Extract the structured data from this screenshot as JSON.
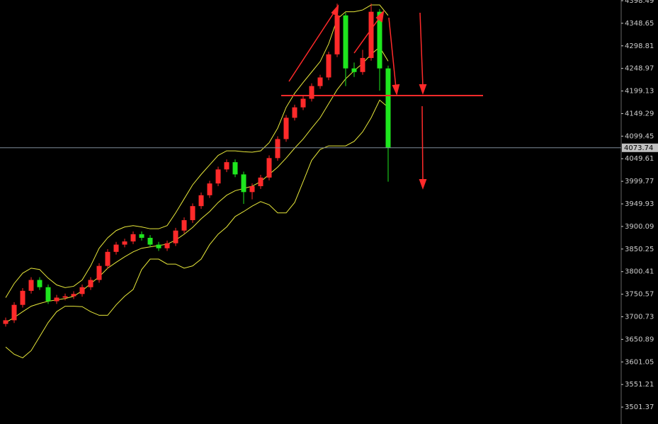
{
  "chart_data": {
    "type": "candlestick",
    "up_color": "#ff2a2a",
    "down_color": "#1ee61e",
    "band_color": "#e8e83a",
    "axis_color": "#cccccc",
    "open": [
      3685,
      3693,
      3727,
      3758,
      3782,
      3766,
      3735,
      3743,
      3746,
      3751,
      3766,
      3782,
      3813,
      3844,
      3860,
      3867,
      3883,
      3875,
      3860,
      3852,
      3863,
      3891,
      3914,
      3945,
      3969,
      3995,
      4026,
      4042,
      4015,
      3976,
      3989,
      4008,
      4051,
      4093,
      4140,
      4163,
      4182,
      4210,
      4229,
      4280,
      4366,
      4249,
      4241,
      4272,
      4374,
      4249
    ],
    "high": [
      3699,
      3733,
      3764,
      3788,
      3788,
      3772,
      3749,
      3752,
      3757,
      3772,
      3788,
      3819,
      3850,
      3866,
      3873,
      3889,
      3889,
      3881,
      3866,
      3869,
      3897,
      3920,
      3951,
      3975,
      4001,
      4032,
      4048,
      4048,
      4021,
      3995,
      4014,
      4057,
      4099,
      4146,
      4169,
      4188,
      4216,
      4235,
      4286,
      4392,
      4372,
      4262,
      4290,
      4392,
      4380,
      4255
    ],
    "low": [
      3679,
      3687,
      3721,
      3752,
      3760,
      3729,
      3729,
      3737,
      3740,
      3745,
      3760,
      3776,
      3807,
      3838,
      3854,
      3861,
      3869,
      3854,
      3846,
      3846,
      3857,
      3885,
      3908,
      3939,
      3963,
      3989,
      4020,
      4009,
      3950,
      3960,
      3983,
      4002,
      4045,
      4087,
      4134,
      4157,
      4176,
      4204,
      4223,
      4274,
      4210,
      4230,
      4235,
      4266,
      4200,
      3999
    ],
    "close": [
      3693,
      3727,
      3758,
      3782,
      3766,
      3735,
      3743,
      3746,
      3751,
      3766,
      3782,
      3813,
      3844,
      3860,
      3867,
      3883,
      3875,
      3860,
      3852,
      3863,
      3891,
      3914,
      3945,
      3969,
      3995,
      4026,
      4042,
      4015,
      3976,
      3989,
      4008,
      4051,
      4093,
      4140,
      4163,
      4182,
      4210,
      4229,
      4280,
      4366,
      4249,
      4241,
      4272,
      4374,
      4249,
      4073.74
    ],
    "bands": {
      "upper": [
        3743,
        3774,
        3797,
        3808,
        3805,
        3786,
        3771,
        3765,
        3768,
        3782,
        3813,
        3852,
        3875,
        3891,
        3899,
        3902,
        3899,
        3895,
        3895,
        3902,
        3930,
        3961,
        3992,
        4015,
        4036,
        4057,
        4067,
        4067,
        4065,
        4064,
        4067,
        4085,
        4117,
        4163,
        4194,
        4218,
        4241,
        4264,
        4303,
        4358,
        4374,
        4374,
        4378,
        4389,
        4389,
        4366
      ],
      "middle": [
        3688,
        3699,
        3712,
        3724,
        3730,
        3735,
        3738,
        3741,
        3746,
        3758,
        3774,
        3789,
        3808,
        3821,
        3833,
        3844,
        3852,
        3855,
        3858,
        3861,
        3870,
        3883,
        3898,
        3917,
        3933,
        3953,
        3969,
        3979,
        3984,
        3989,
        3999,
        4015,
        4031,
        4051,
        4073,
        4093,
        4117,
        4140,
        4171,
        4202,
        4226,
        4244,
        4260,
        4280,
        4296,
        4265
      ],
      "lower": [
        3634,
        3618,
        3610,
        3626,
        3657,
        3688,
        3712,
        3724,
        3724,
        3723,
        3712,
        3704,
        3704,
        3727,
        3746,
        3761,
        3805,
        3828,
        3828,
        3817,
        3817,
        3808,
        3813,
        3828,
        3860,
        3883,
        3899,
        3922,
        3933,
        3945,
        3955,
        3948,
        3930,
        3930,
        3953,
        3999,
        4046,
        4070,
        4078,
        4078,
        4078,
        4088,
        4109,
        4140,
        4179,
        4163
      ]
    },
    "ylim": [
      3464,
      4400
    ],
    "yticks": [
      4398.49,
      4348.65,
      4298.81,
      4248.97,
      4199.13,
      4149.29,
      4099.45,
      4049.61,
      3999.77,
      3949.93,
      3900.09,
      3850.25,
      3800.41,
      3750.57,
      3700.73,
      3650.89,
      3601.05,
      3551.21,
      3501.37
    ]
  }
}
